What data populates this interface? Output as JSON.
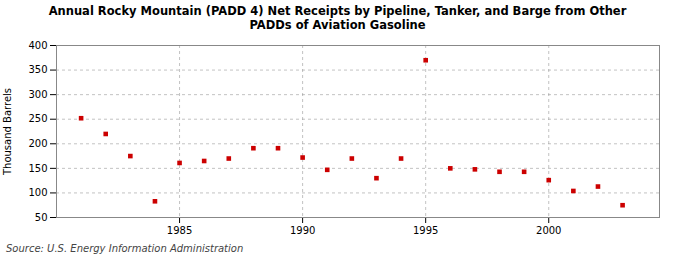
{
  "chart_data": {
    "type": "scatter",
    "title": "Annual Rocky Mountain (PADD 4) Net Receipts by Pipeline, Tanker, and Barge from Other\nPADDs of Aviation Gasoline",
    "ylabel": "Thousand Barrels",
    "source": "Source: U.S. Energy Information Administration",
    "x": [
      1981,
      1982,
      1983,
      1984,
      1985,
      1986,
      1987,
      1988,
      1989,
      1990,
      1991,
      1992,
      1993,
      1994,
      1995,
      1996,
      1997,
      1998,
      1999,
      2000,
      2001,
      2002,
      2003
    ],
    "values": [
      252,
      220,
      175,
      83,
      161,
      165,
      170,
      191,
      191,
      172,
      147,
      170,
      130,
      170,
      370,
      150,
      148,
      143,
      143,
      126,
      104,
      113,
      75
    ],
    "color": "#cc0000",
    "marker": "square",
    "xlim": [
      1980.0,
      2004.5
    ],
    "ylim": [
      50,
      400
    ],
    "xticks": [
      1985,
      1990,
      1995,
      2000
    ],
    "yticks": [
      50,
      100,
      150,
      200,
      250,
      300,
      350,
      400
    ],
    "grid": true
  }
}
